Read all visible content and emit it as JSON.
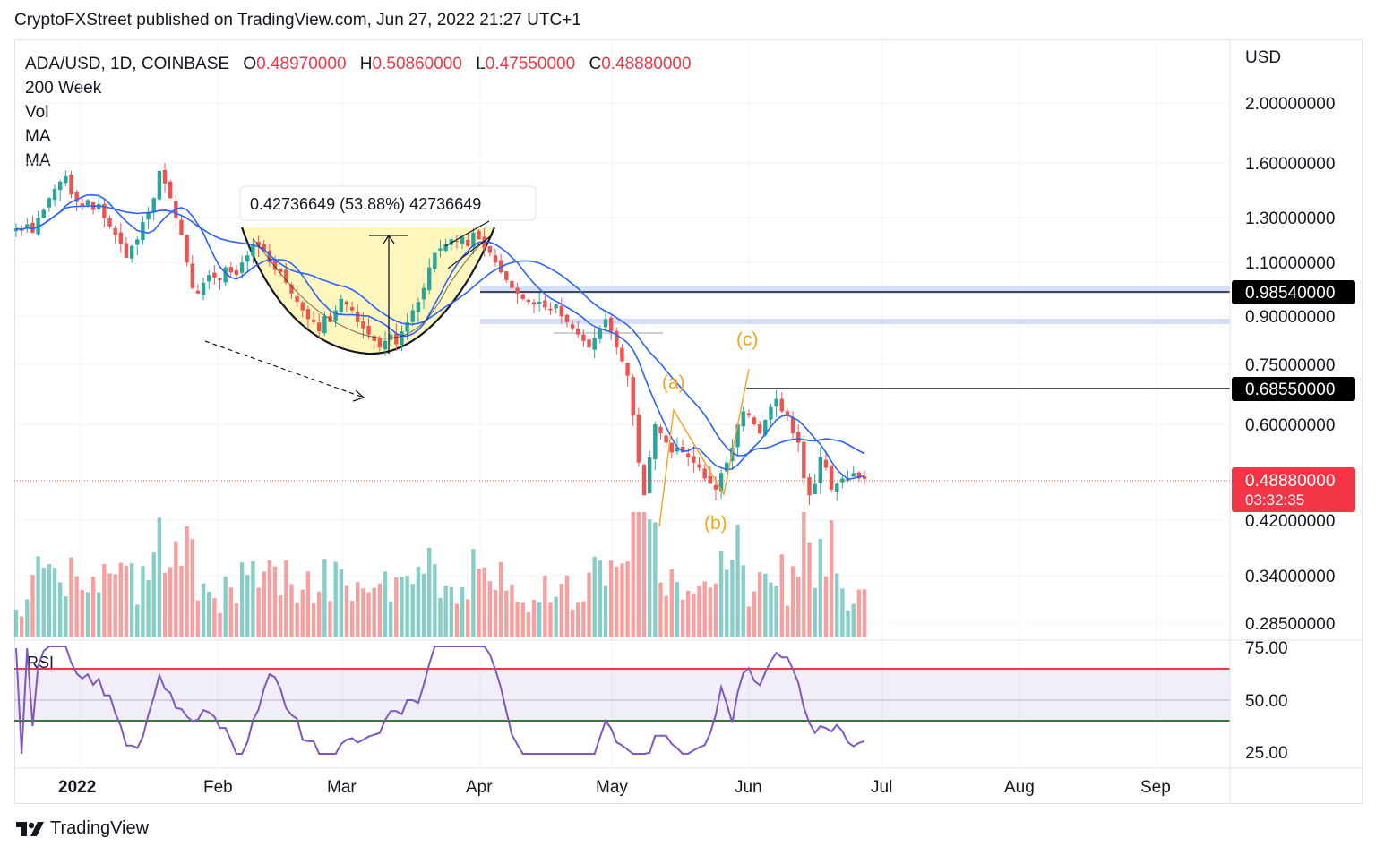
{
  "header": {
    "published": "CryptoFXStreet published on TradingView.com, Jun 27, 2022 21:27 UTC+1"
  },
  "legend": {
    "symbol": "ADA/USD, 1D, COINBASE",
    "open_label": "O",
    "open": "0.48970000",
    "high_label": "H",
    "high": "0.50860000",
    "low_label": "L",
    "low": "0.47550000",
    "close_label": "C",
    "close": "0.48880000",
    "indicators": [
      "200 Week",
      "Vol",
      "MA",
      "MA"
    ]
  },
  "axis": {
    "currency": "USD",
    "price_ticks": [
      "2.00000000",
      "1.60000000",
      "1.30000000",
      "1.10000000",
      "0.90000000",
      "0.75000000",
      "0.60000000",
      "0.42000000",
      "0.34000000",
      "0.28500000"
    ],
    "rsi_ticks": [
      "75.00",
      "50.00",
      "25.00"
    ],
    "time_ticks": [
      "2022",
      "Feb",
      "Mar",
      "Apr",
      "May",
      "Jun",
      "Jul",
      "Aug",
      "Sep"
    ]
  },
  "price_labels": {
    "level_1": "0.98540000",
    "level_2": "0.68550000",
    "current": "0.48880000",
    "countdown": "03:32:35"
  },
  "annotations": {
    "measure": "0.42736649 (53.88%) 42736649",
    "wave_a": "(a)",
    "wave_b": "(b)",
    "wave_c": "(c)"
  },
  "rsi": {
    "label": "RSI"
  },
  "footer": {
    "brand": "TradingView"
  },
  "colors": {
    "up": "#26a69a",
    "down": "#ef5350",
    "ma": "#2962ff",
    "rsi": "#7e57c2",
    "wave": "#f7a21b",
    "cup": "#fff3a8"
  },
  "chart_data": {
    "type": "candlestick",
    "x_range": [
      "2021-12-17",
      "2022-09-21"
    ],
    "y_scale": "log",
    "ylim": [
      0.27,
      2.3
    ],
    "levels": [
      0.9854,
      0.6855
    ],
    "close_series": [
      1.25,
      1.24,
      1.27,
      1.23,
      1.3,
      1.34,
      1.4,
      1.45,
      1.49,
      1.52,
      1.42,
      1.38,
      1.36,
      1.39,
      1.34,
      1.37,
      1.3,
      1.26,
      1.22,
      1.18,
      1.12,
      1.17,
      1.2,
      1.28,
      1.33,
      1.4,
      1.55,
      1.48,
      1.4,
      1.3,
      1.22,
      1.1,
      1.0,
      0.98,
      1.02,
      1.05,
      1.04,
      1.03,
      1.08,
      1.06,
      1.05,
      1.1,
      1.13,
      1.18,
      1.17,
      1.15,
      1.1,
      1.07,
      1.06,
      1.02,
      0.98,
      0.95,
      0.92,
      0.89,
      0.88,
      0.85,
      0.9,
      0.88,
      0.92,
      0.96,
      0.94,
      0.92,
      0.88,
      0.86,
      0.84,
      0.82,
      0.8,
      0.82,
      0.84,
      0.81,
      0.85,
      0.88,
      0.92,
      0.95,
      1.0,
      1.08,
      1.14,
      1.16,
      1.18,
      1.2,
      1.19,
      1.21,
      1.17,
      1.23,
      1.2,
      1.16,
      1.14,
      1.1,
      1.06,
      1.03,
      1.0,
      0.98,
      0.96,
      0.95,
      0.94,
      0.95,
      0.93,
      0.92,
      0.94,
      0.9,
      0.88,
      0.86,
      0.84,
      0.82,
      0.8,
      0.83,
      0.86,
      0.89,
      0.85,
      0.8,
      0.76,
      0.72,
      0.62,
      0.52,
      0.46,
      0.53,
      0.6,
      0.58,
      0.56,
      0.54,
      0.55,
      0.54,
      0.53,
      0.52,
      0.51,
      0.49,
      0.48,
      0.47,
      0.5,
      0.52,
      0.55,
      0.6,
      0.63,
      0.62,
      0.6,
      0.58,
      0.61,
      0.64,
      0.66,
      0.63,
      0.62,
      0.58,
      0.56,
      0.49,
      0.46,
      0.48,
      0.53,
      0.51,
      0.47,
      0.48,
      0.49,
      0.49,
      0.5,
      0.49,
      0.489
    ]
  }
}
